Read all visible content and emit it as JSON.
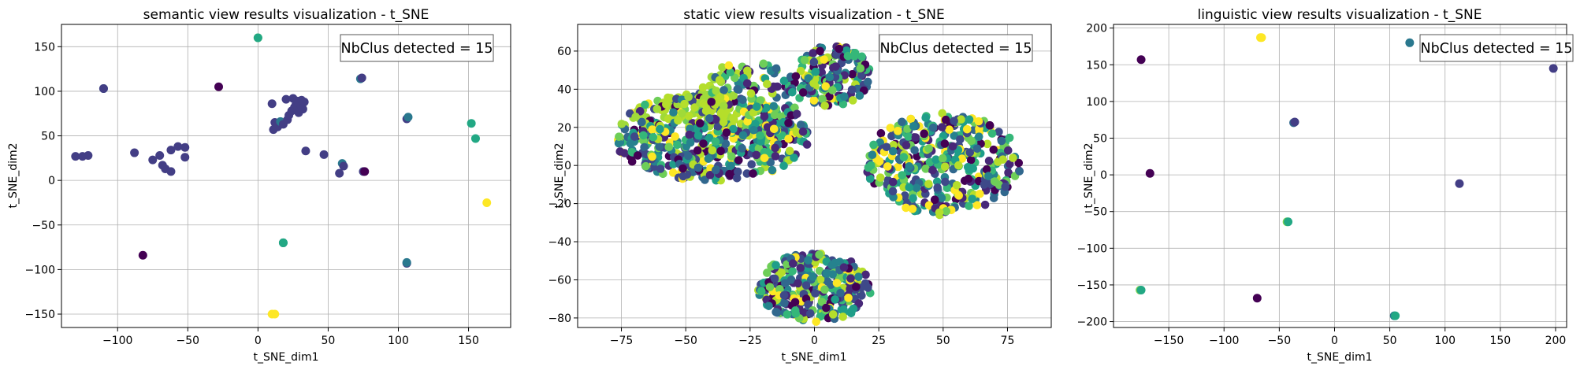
{
  "chart_data": [
    {
      "type": "scatter",
      "title": "semantic view results visualization - t_SNE",
      "xlabel": "t_SNE_dim1",
      "ylabel": "t_SNE_dim2",
      "xlim": [
        -140,
        180
      ],
      "ylim": [
        -165,
        175
      ],
      "xticks": [
        -100,
        -50,
        0,
        50,
        100,
        150
      ],
      "yticks": [
        -150,
        -100,
        -50,
        0,
        50,
        100,
        150
      ],
      "grid": true,
      "annotation": "NbClus detected = 15",
      "annotation_position": "top-right",
      "points": [
        {
          "x": -130,
          "y": 27,
          "c": "#433e85"
        },
        {
          "x": -125,
          "y": 27,
          "c": "#433e85"
        },
        {
          "x": -121,
          "y": 28,
          "c": "#433e85"
        },
        {
          "x": -110,
          "y": 103,
          "c": "#2a788e"
        },
        {
          "x": -110,
          "y": 103,
          "c": "#433e85"
        },
        {
          "x": -88,
          "y": 31,
          "c": "#433e85"
        },
        {
          "x": -82,
          "y": -84,
          "c": "#440154"
        },
        {
          "x": -75,
          "y": 23,
          "c": "#433e85"
        },
        {
          "x": -70,
          "y": 28,
          "c": "#433e85"
        },
        {
          "x": -68,
          "y": 17,
          "c": "#433e85"
        },
        {
          "x": -66,
          "y": 13,
          "c": "#433e85"
        },
        {
          "x": -62,
          "y": 10,
          "c": "#433e85"
        },
        {
          "x": -62,
          "y": 34,
          "c": "#433e85"
        },
        {
          "x": -57,
          "y": 38,
          "c": "#433e85"
        },
        {
          "x": -52,
          "y": 37,
          "c": "#433e85"
        },
        {
          "x": -52,
          "y": 26,
          "c": "#433e85"
        },
        {
          "x": -28,
          "y": 105,
          "c": "#440154"
        },
        {
          "x": 0,
          "y": 160,
          "c": "#7ad151"
        },
        {
          "x": 0,
          "y": 160,
          "c": "#22a884"
        },
        {
          "x": 10,
          "y": 86,
          "c": "#433e85"
        },
        {
          "x": 12,
          "y": 65,
          "c": "#433e85"
        },
        {
          "x": 11,
          "y": 57,
          "c": "#433e85"
        },
        {
          "x": 14,
          "y": 60,
          "c": "#433e85"
        },
        {
          "x": 16,
          "y": 66,
          "c": "#2a788e"
        },
        {
          "x": 18,
          "y": 63,
          "c": "#433e85"
        },
        {
          "x": 20,
          "y": 91,
          "c": "#433e85"
        },
        {
          "x": 21,
          "y": 68,
          "c": "#433e85"
        },
        {
          "x": 22,
          "y": 73,
          "c": "#433e85"
        },
        {
          "x": 24,
          "y": 78,
          "c": "#433e85"
        },
        {
          "x": 25,
          "y": 92,
          "c": "#433e85"
        },
        {
          "x": 26,
          "y": 82,
          "c": "#433e85"
        },
        {
          "x": 27,
          "y": 85,
          "c": "#433e85"
        },
        {
          "x": 28,
          "y": 89,
          "c": "#433e85"
        },
        {
          "x": 29,
          "y": 76,
          "c": "#433e85"
        },
        {
          "x": 30,
          "y": 86,
          "c": "#433e85"
        },
        {
          "x": 31,
          "y": 90,
          "c": "#433e85"
        },
        {
          "x": 32,
          "y": 80,
          "c": "#433e85"
        },
        {
          "x": 33,
          "y": 88,
          "c": "#433e85"
        },
        {
          "x": 34,
          "y": 33,
          "c": "#433e85"
        },
        {
          "x": 18,
          "y": -70,
          "c": "#2a788e"
        },
        {
          "x": 18,
          "y": -70,
          "c": "#22a884"
        },
        {
          "x": 47,
          "y": 29,
          "c": "#433e85"
        },
        {
          "x": 58,
          "y": 8,
          "c": "#433e85"
        },
        {
          "x": 60,
          "y": 19,
          "c": "#2a788e"
        },
        {
          "x": 61,
          "y": 16,
          "c": "#433e85"
        },
        {
          "x": 73,
          "y": 114,
          "c": "#2a788e"
        },
        {
          "x": 74,
          "y": 115,
          "c": "#433e85"
        },
        {
          "x": 75,
          "y": 10,
          "c": "#433e85"
        },
        {
          "x": 76,
          "y": 10,
          "c": "#440154"
        },
        {
          "x": 106,
          "y": 69,
          "c": "#433e85"
        },
        {
          "x": 107,
          "y": 71,
          "c": "#2a788e"
        },
        {
          "x": 106,
          "y": -93,
          "c": "#433e85"
        },
        {
          "x": 106,
          "y": -92,
          "c": "#2a788e"
        },
        {
          "x": 152,
          "y": 64,
          "c": "#22a884"
        },
        {
          "x": 155,
          "y": 47,
          "c": "#22a884"
        },
        {
          "x": 163,
          "y": -25,
          "c": "#fde725"
        },
        {
          "x": 10,
          "y": -150,
          "c": "#fde725"
        },
        {
          "x": 12,
          "y": -150,
          "c": "#fde725"
        }
      ]
    },
    {
      "type": "scatter",
      "title": "static view results visualization - t_SNE",
      "xlabel": "t_SNE_dim1",
      "ylabel": "t_SNE_dim2",
      "xlim": [
        -92,
        92
      ],
      "ylim": [
        -85,
        74
      ],
      "xticks": [
        -75,
        -50,
        -25,
        0,
        25,
        50,
        75
      ],
      "yticks": [
        -80,
        -60,
        -40,
        -20,
        0,
        20,
        40,
        60
      ],
      "grid": true,
      "annotation": "NbClus detected = 15",
      "annotation_position": "top-right",
      "clusters": [
        {
          "cx": -40,
          "cy": 15,
          "rx": 38,
          "ry": 23,
          "n": 560
        },
        {
          "cx": -25,
          "cy": 35,
          "rx": 20,
          "ry": 20,
          "n": 160
        },
        {
          "cx": 7,
          "cy": 47,
          "rx": 15,
          "ry": 16,
          "n": 170
        },
        {
          "cx": 50,
          "cy": 1,
          "rx": 30,
          "ry": 27,
          "n": 400
        },
        {
          "cx": 0,
          "cy": -64,
          "rx": 22,
          "ry": 18,
          "n": 300
        }
      ],
      "palette": [
        "#440154",
        "#482878",
        "#3e4989",
        "#31688e",
        "#26828e",
        "#1f9e89",
        "#35b779",
        "#6ece58",
        "#b5de2b",
        "#fde725"
      ]
    },
    {
      "type": "scatter",
      "title": "linguistic view results visualization - t_SNE",
      "xlabel": "t_SNE_dim1",
      "ylabel": "t_SNE_dim2",
      "xlim": [
        -200,
        210
      ],
      "ylim": [
        -208,
        205
      ],
      "xticks": [
        -150,
        -100,
        -50,
        0,
        50,
        100,
        150,
        200
      ],
      "yticks": [
        -200,
        -150,
        -100,
        -50,
        0,
        50,
        100,
        150,
        200
      ],
      "grid": true,
      "annotation": "NbClus detected = 15",
      "annotation_position": "top-right",
      "points": [
        {
          "x": -175,
          "y": 157,
          "c": "#440154"
        },
        {
          "x": -67,
          "y": 187,
          "c": "#fde725"
        },
        {
          "x": -66,
          "y": 187,
          "c": "#fde725"
        },
        {
          "x": 68,
          "y": 180,
          "c": "#2a788e"
        },
        {
          "x": 198,
          "y": 145,
          "c": "#433e85"
        },
        {
          "x": -37,
          "y": 71,
          "c": "#31688e"
        },
        {
          "x": -36,
          "y": 72,
          "c": "#433e85"
        },
        {
          "x": -167,
          "y": 2,
          "c": "#440154"
        },
        {
          "x": -43,
          "y": -64,
          "c": "#7ad151"
        },
        {
          "x": -42,
          "y": -64,
          "c": "#22a884"
        },
        {
          "x": 113,
          "y": -12,
          "c": "#433e85"
        },
        {
          "x": -176,
          "y": -157,
          "c": "#7ad151"
        },
        {
          "x": -175,
          "y": -157,
          "c": "#22a884"
        },
        {
          "x": -70,
          "y": -168,
          "c": "#440154"
        },
        {
          "x": 54,
          "y": -192,
          "c": "#2a788e"
        },
        {
          "x": 55,
          "y": -192,
          "c": "#22a884"
        }
      ]
    }
  ]
}
